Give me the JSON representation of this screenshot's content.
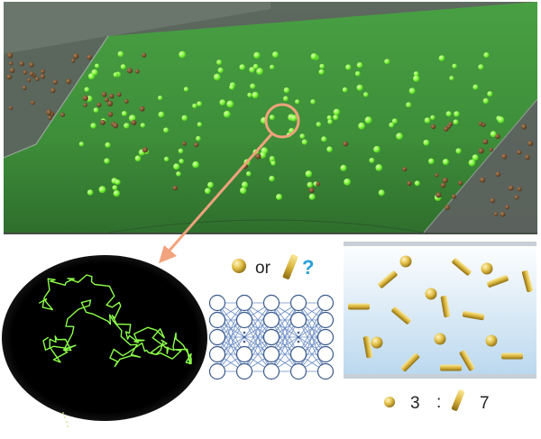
{
  "question": {
    "or_text": "or",
    "mark": "?"
  },
  "ratio": {
    "sphere_count": "3",
    "separator": ":",
    "rod_count": "7"
  },
  "colors": {
    "fluorescent_particle": "#7dff3a",
    "brown_particle": "#6b4a2a",
    "channel_green": "#3f9a3a",
    "magnify_circle": "#f0a37c",
    "trajectory": "#8cff4a",
    "gold_particle": "#d8b640",
    "network_node_stroke": "#3a5a8c",
    "network_edge": "#5a7db8",
    "box_top": "#ffffff",
    "box_bottom": "#bcd9ef"
  },
  "icons": [
    "sphere-icon",
    "rod-icon",
    "neural-network-icon",
    "magnifier-circle",
    "arrow"
  ],
  "network": {
    "layers": [
      5,
      5,
      5,
      5,
      5
    ]
  },
  "mixture": {
    "spheres": 6,
    "rods": 14
  }
}
